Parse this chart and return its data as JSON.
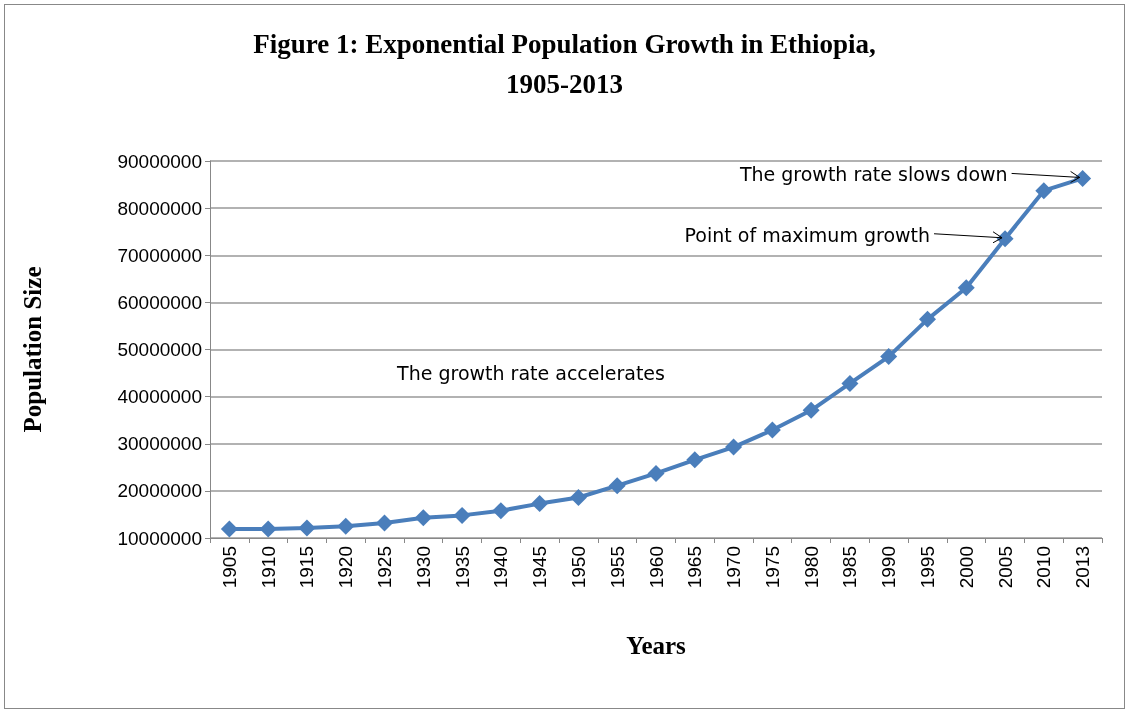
{
  "chart_data": {
    "type": "line",
    "title": "Figure 1: Exponential Population Growth in Ethiopia,\n1905-2013",
    "xlabel": "Years",
    "ylabel": "Population Size",
    "categories": [
      "1905",
      "1910",
      "1915",
      "1920",
      "1925",
      "1930",
      "1935",
      "1940",
      "1945",
      "1950",
      "1955",
      "1960",
      "1965",
      "1970",
      "1975",
      "1980",
      "1985",
      "1990",
      "1995",
      "2000",
      "2005",
      "2010",
      "2013"
    ],
    "series": [
      {
        "color": "#4a7ebb",
        "values": [
          11900000,
          11900000,
          12100000,
          12500000,
          13200000,
          14300000,
          14800000,
          15800000,
          17300000,
          18600000,
          21100000,
          23700000,
          26600000,
          29300000,
          32900000,
          37100000,
          42800000,
          48500000,
          56400000,
          63100000,
          73500000,
          83700000,
          86300000
        ]
      }
    ],
    "ylim": [
      10000000,
      90000000
    ],
    "yticks": [
      10000000,
      20000000,
      30000000,
      40000000,
      50000000,
      60000000,
      70000000,
      80000000,
      90000000
    ],
    "grid": "y",
    "marker": "diamond",
    "line_style": "solid",
    "annotations": [
      {
        "text": "The growth rate slows down",
        "x": "2013",
        "y": 86300000
      },
      {
        "text": "Point of maximum growth",
        "x": "2005",
        "y": 73500000
      },
      "The growth rate accelerates"
    ]
  }
}
